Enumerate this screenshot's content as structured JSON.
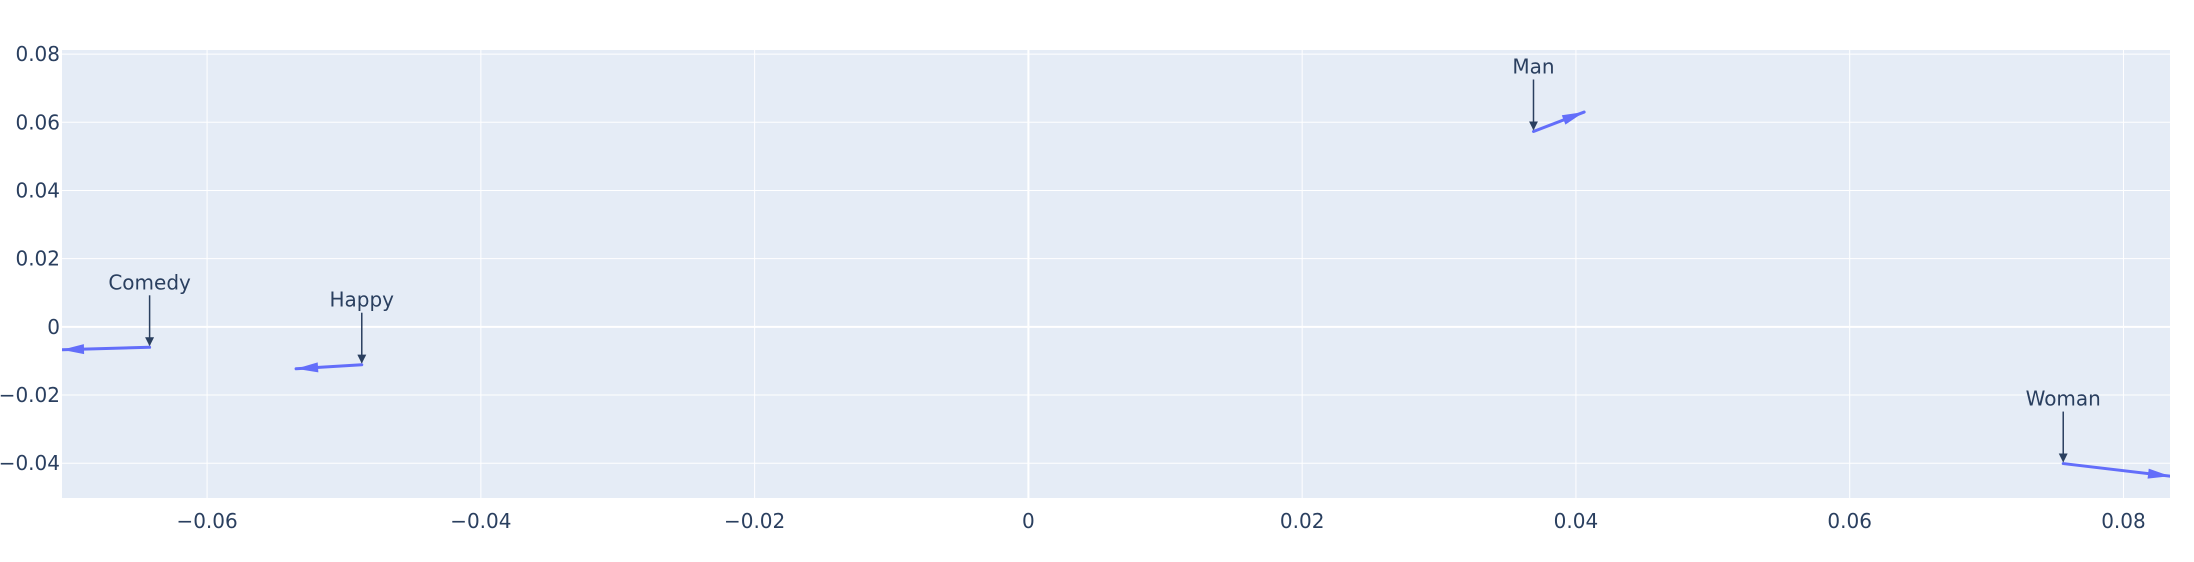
{
  "chart_data": {
    "type": "vector",
    "title": "",
    "xlabel": "",
    "ylabel": "",
    "xlim": [
      -0.0706,
      0.0834
    ],
    "ylim": [
      -0.0502,
      0.0812
    ],
    "grid": true,
    "x_ticks": [
      {
        "value": -0.06,
        "label": "−0.06"
      },
      {
        "value": -0.04,
        "label": "−0.04"
      },
      {
        "value": -0.02,
        "label": "−0.02"
      },
      {
        "value": 0,
        "label": "0"
      },
      {
        "value": 0.02,
        "label": "0.02"
      },
      {
        "value": 0.04,
        "label": "0.04"
      },
      {
        "value": 0.06,
        "label": "0.06"
      },
      {
        "value": 0.08,
        "label": "0.08"
      }
    ],
    "y_ticks": [
      {
        "value": 0.08,
        "label": "0.08"
      },
      {
        "value": 0.06,
        "label": "0.06"
      },
      {
        "value": 0.04,
        "label": "0.04"
      },
      {
        "value": 0.02,
        "label": "0.02"
      },
      {
        "value": 0,
        "label": "0"
      },
      {
        "value": -0.02,
        "label": "−0.02"
      },
      {
        "value": -0.04,
        "label": "−0.04"
      }
    ],
    "vectors": [
      {
        "label": "Man",
        "x": 0.0369,
        "y": 0.0573,
        "dx": 0.0037,
        "dy": 0.0057
      },
      {
        "label": "Comedy",
        "x": -0.0642,
        "y": -0.006,
        "dx": -0.0064,
        "dy": -0.0007
      },
      {
        "label": "Happy",
        "x": -0.0487,
        "y": -0.0111,
        "dx": -0.0048,
        "dy": -0.0012
      },
      {
        "label": "Woman",
        "x": 0.0756,
        "y": -0.0401,
        "dx": 0.0078,
        "dy": -0.0037
      }
    ],
    "colors": {
      "vector": "#636efa",
      "annotation": "#2a3f5f",
      "plot_bg": "#e5ecf6",
      "grid": "#ffffff"
    }
  }
}
